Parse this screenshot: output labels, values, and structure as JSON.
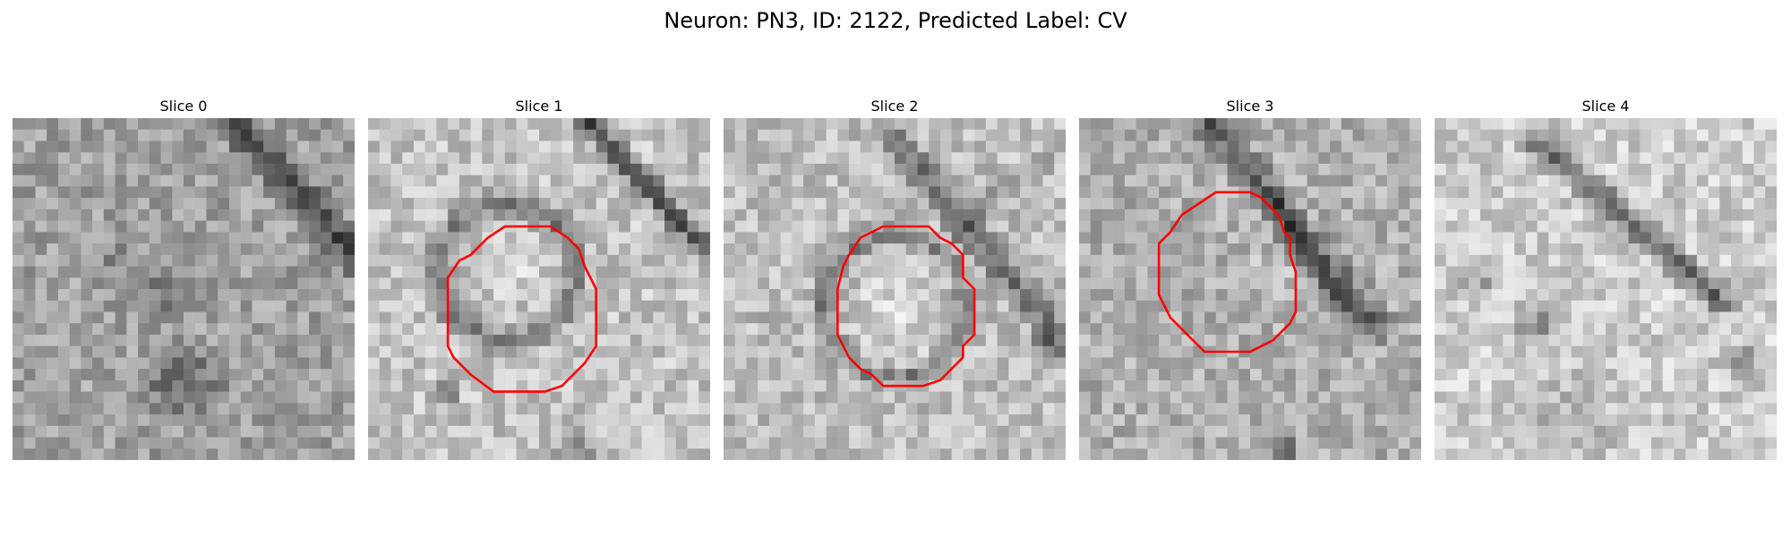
{
  "figure": {
    "title": "Neuron: PN3, ID: 2122, Predicted Label: CV"
  },
  "panels": [
    {
      "title": "Slice 0",
      "seed": 11,
      "has_contour": false
    },
    {
      "title": "Slice 1",
      "seed": 23,
      "has_contour": true
    },
    {
      "title": "Slice 2",
      "seed": 37,
      "has_contour": true
    },
    {
      "title": "Slice 3",
      "seed": 53,
      "has_contour": true
    },
    {
      "title": "Slice 4",
      "seed": 71,
      "has_contour": false
    }
  ],
  "image": {
    "colormap": "gray",
    "grid_size": 30
  },
  "contour": {
    "color": "#ff0000"
  }
}
